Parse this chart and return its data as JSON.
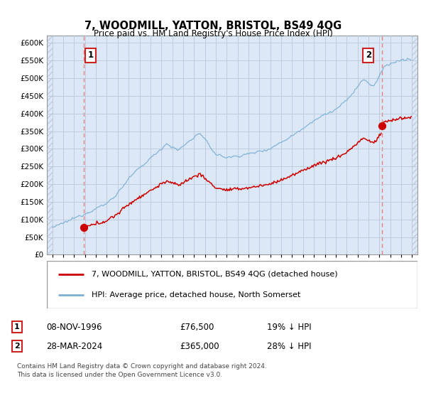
{
  "title": "7, WOODMILL, YATTON, BRISTOL, BS49 4QG",
  "subtitle": "Price paid vs. HM Land Registry's House Price Index (HPI)",
  "legend_line1": "7, WOODMILL, YATTON, BRISTOL, BS49 4QG (detached house)",
  "legend_line2": "HPI: Average price, detached house, North Somerset",
  "footnote1": "Contains HM Land Registry data © Crown copyright and database right 2024.",
  "footnote2": "This data is licensed under the Open Government Licence v3.0.",
  "sale1_date": "08-NOV-1996",
  "sale1_price": 76500,
  "sale1_year": 1996.86,
  "sale1_note": "19% ↓ HPI",
  "sale2_date": "28-MAR-2024",
  "sale2_price": 365000,
  "sale2_year": 2024.23,
  "sale2_note": "28% ↓ HPI",
  "hpi_color": "#7bafd4",
  "price_color": "#cc0000",
  "dashed_color": "#e88080",
  "grid_color": "#b8c8dc",
  "plot_bg": "#dce8f5",
  "ylim_min": 0,
  "ylim_max": 620000,
  "xlim_min": 1993.5,
  "xlim_max": 2027.5
}
